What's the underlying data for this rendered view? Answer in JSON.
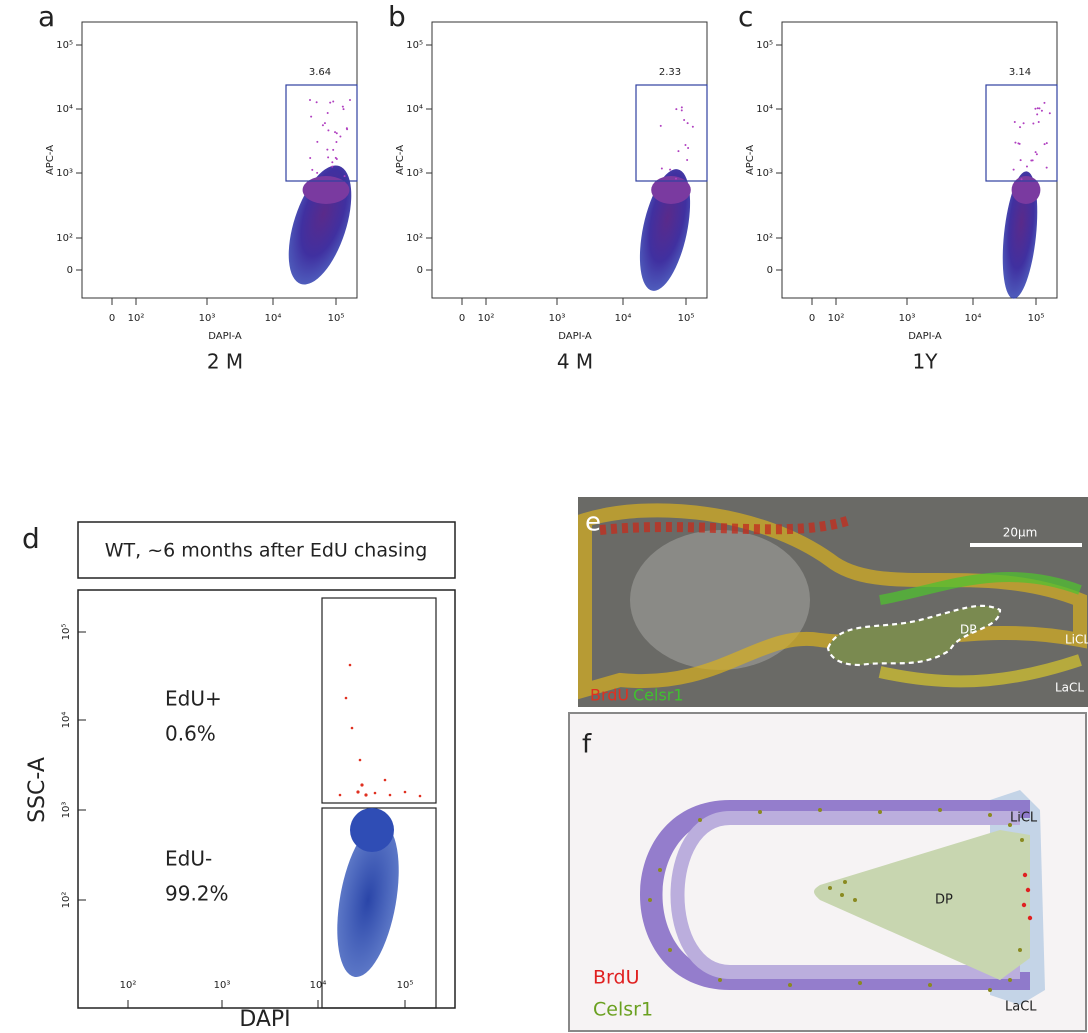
{
  "panels": [
    {
      "letter": "a",
      "caption": "2 M",
      "x_label": "DAPI-A",
      "y_label": "APC-A",
      "gate_value": "3.64",
      "xticks": [
        "0",
        "10²",
        "10³",
        "10⁴",
        "10⁵"
      ],
      "yticks": [
        "0",
        "10²",
        "10³",
        "10⁴",
        "10⁵"
      ]
    },
    {
      "letter": "b",
      "caption": "4 M",
      "x_label": "DAPI-A",
      "y_label": "APC-A",
      "gate_value": "2.33",
      "xticks": [
        "0",
        "10²",
        "10³",
        "10⁴",
        "10⁵"
      ],
      "yticks": [
        "0",
        "10²",
        "10³",
        "10⁴",
        "10⁵"
      ]
    },
    {
      "letter": "c",
      "caption": "1Y",
      "x_label": "DAPI-A",
      "y_label": "APC-A",
      "gate_value": "3.14",
      "xticks": [
        "0",
        "10²",
        "10³",
        "10⁴",
        "10⁵"
      ],
      "yticks": [
        "0",
        "10²",
        "10³",
        "10⁴",
        "10⁵"
      ]
    }
  ],
  "panel_d": {
    "letter": "d",
    "title": "WT, ~6 months after EdU chasing",
    "x_label": "DAPI",
    "y_label": "SSC-A",
    "gates": [
      {
        "name": "EdU+",
        "percent": "0.6%"
      },
      {
        "name": "EdU-",
        "percent": "99.2%"
      }
    ],
    "xticks": [
      "10²",
      "10³",
      "10⁴",
      "10⁵"
    ],
    "yticks": [
      "10²",
      "10³",
      "10⁴",
      "10⁵"
    ]
  },
  "panel_e": {
    "letter": "e",
    "scale_bar": "20μm",
    "labels": [
      "LiCL",
      "DP",
      "LaCL"
    ],
    "stain_1": "BrdU",
    "stain_2": "Celsr1"
  },
  "panel_f": {
    "letter": "f",
    "labels": [
      "LiCL",
      "DP",
      "LaCL"
    ],
    "legend": [
      "BrdU",
      "Celsr1"
    ]
  }
}
